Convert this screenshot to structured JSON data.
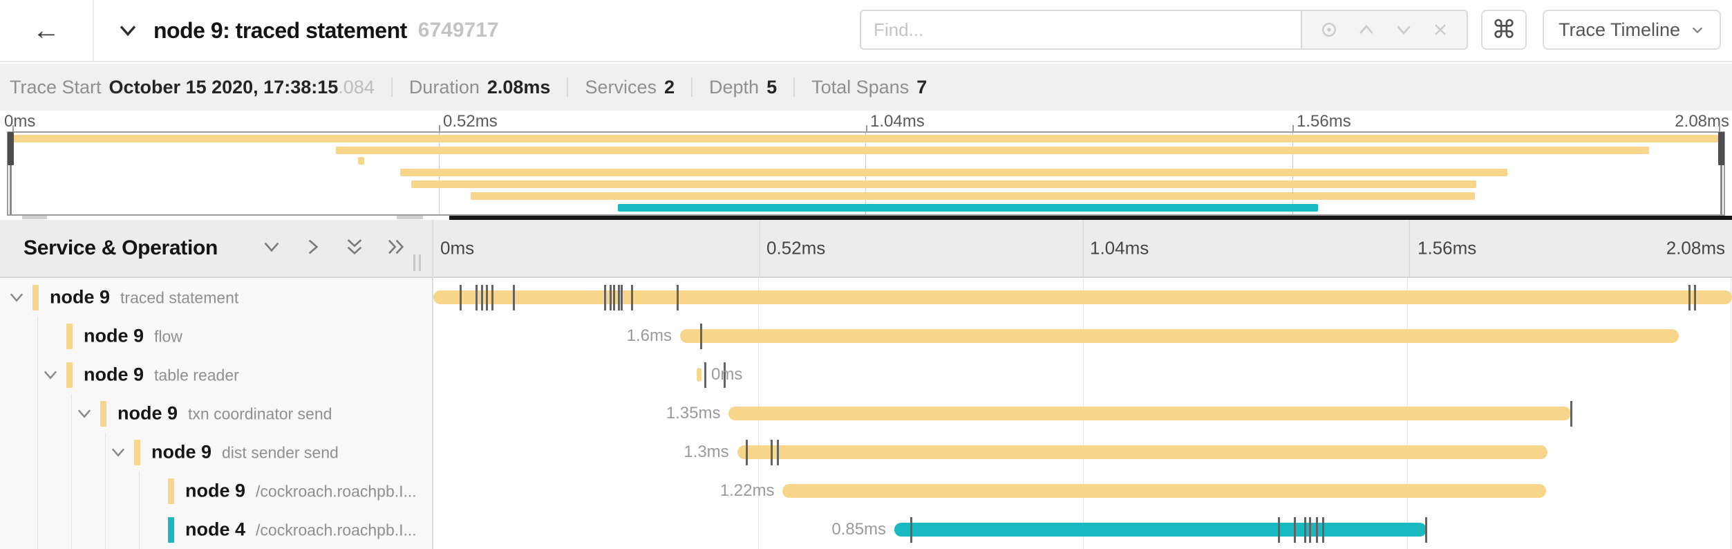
{
  "header": {
    "back_glyph": "←",
    "title": "node 9: traced statement",
    "trace_id": "6749717",
    "find_placeholder": "Find...",
    "shortcut_glyph": "⌘",
    "view_selector_label": "Trace Timeline"
  },
  "stats": {
    "items": [
      {
        "label": "Trace Start",
        "value": "October 15 2020, 17:38:15",
        "suffix": ".084"
      },
      {
        "label": "Duration",
        "value": "2.08ms",
        "suffix": ""
      },
      {
        "label": "Services",
        "value": "2",
        "suffix": ""
      },
      {
        "label": "Depth",
        "value": "5",
        "suffix": ""
      },
      {
        "label": "Total Spans",
        "value": "7",
        "suffix": ""
      }
    ]
  },
  "timeline": {
    "column_header": "Service & Operation",
    "axis_ticks": [
      "0ms",
      "0.52ms",
      "1.04ms",
      "1.56ms",
      "2.08ms"
    ],
    "total_duration": "2.08ms",
    "colors": {
      "node9": "#F7D58A",
      "node4": "#1AB8C1"
    }
  },
  "spans": [
    {
      "service": "node 9",
      "operation": "traced statement",
      "depth": 0,
      "expandable": true,
      "color_key": "node9",
      "start_pct": 0,
      "end_pct": 100,
      "duration_label": "",
      "label_side": "none",
      "ticks_pct": [
        2.1,
        3.3,
        3.7,
        4.1,
        4.5,
        6.2,
        13.2,
        13.6,
        13.9,
        14.25,
        14.5,
        15.3,
        18.8,
        96.7,
        97.1
      ]
    },
    {
      "service": "node 9",
      "operation": "flow",
      "depth": 1,
      "expandable": false,
      "color_key": "node9",
      "start_pct": 19.0,
      "end_pct": 95.9,
      "duration_label": "1.6ms",
      "label_side": "left",
      "ticks_pct": [
        20.6
      ]
    },
    {
      "service": "node 9",
      "operation": "table reader",
      "depth": 1,
      "expandable": true,
      "color_key": "node9",
      "start_pct": 20.3,
      "end_pct": 20.65,
      "duration_label": "0ms",
      "label_side": "right",
      "ticks_pct": [
        20.9,
        22.4
      ]
    },
    {
      "service": "node 9",
      "operation": "txn coordinator send",
      "depth": 2,
      "expandable": true,
      "color_key": "node9",
      "start_pct": 22.75,
      "end_pct": 87.6,
      "duration_label": "1.35ms",
      "label_side": "left",
      "ticks_pct": [
        87.6
      ]
    },
    {
      "service": "node 9",
      "operation": "dist sender send",
      "depth": 3,
      "expandable": true,
      "color_key": "node9",
      "start_pct": 23.4,
      "end_pct": 85.8,
      "duration_label": "1.3ms",
      "label_side": "left",
      "ticks_pct": [
        24.1,
        26.0,
        26.5
      ]
    },
    {
      "service": "node 9",
      "operation": "/cockroach.roachpb.I...",
      "depth": 4,
      "expandable": false,
      "color_key": "node9",
      "start_pct": 26.9,
      "end_pct": 85.7,
      "duration_label": "1.22ms",
      "label_side": "left",
      "ticks_pct": []
    },
    {
      "service": "node 4",
      "operation": "/cockroach.roachpb.I...",
      "depth": 4,
      "expandable": false,
      "color_key": "node4",
      "start_pct": 35.5,
      "end_pct": 76.5,
      "duration_label": "0.85ms",
      "label_side": "left",
      "ticks_pct": [
        36.8,
        65.1,
        66.3,
        67.1,
        67.5,
        68.0,
        68.5,
        76.4
      ]
    }
  ]
}
